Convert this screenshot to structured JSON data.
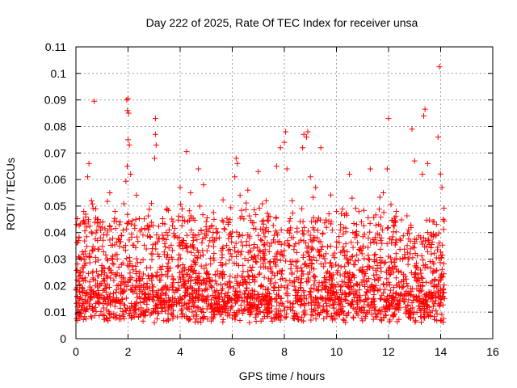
{
  "chart_data": {
    "type": "scatter",
    "title": "Day 222 of 2025, Rate Of TEC Index for receiver unsa",
    "xlabel": "GPS time / hours",
    "ylabel": "ROTI / TECUs",
    "xlim": [
      0,
      16
    ],
    "ylim": [
      0,
      0.11
    ],
    "x_ticks": [
      "0",
      "2",
      "4",
      "6",
      "8",
      "10",
      "12",
      "14",
      "16"
    ],
    "y_ticks": [
      "0",
      "0.01",
      "0.02",
      "0.03",
      "0.04",
      "0.05",
      "0.06",
      "0.07",
      "0.08",
      "0.09",
      "0.1",
      "0.11"
    ],
    "grid": true,
    "marker": "+",
    "series": [
      {
        "name": "ROTI",
        "color": "#ff0000",
        "points": [
          [
            0.1,
            0.037
          ],
          [
            0.3,
            0.048
          ],
          [
            0.45,
            0.061
          ],
          [
            0.5,
            0.066
          ],
          [
            0.6,
            0.052
          ],
          [
            0.7,
            0.0895
          ],
          [
            0.85,
            0.045
          ],
          [
            1.0,
            0.042
          ],
          [
            1.3,
            0.055
          ],
          [
            1.5,
            0.048
          ],
          [
            1.7,
            0.044
          ],
          [
            1.95,
            0.09
          ],
          [
            2.0,
            0.0905
          ],
          [
            1.98,
            0.086
          ],
          [
            2.02,
            0.085
          ],
          [
            2.0,
            0.075
          ],
          [
            2.05,
            0.073
          ],
          [
            1.97,
            0.065
          ],
          [
            2.1,
            0.062
          ],
          [
            2.3,
            0.045
          ],
          [
            3.05,
            0.083
          ],
          [
            3.05,
            0.077
          ],
          [
            3.08,
            0.073
          ],
          [
            3.02,
            0.068
          ],
          [
            2.9,
            0.051
          ],
          [
            3.5,
            0.049
          ],
          [
            4.0,
            0.057
          ],
          [
            4.25,
            0.0705
          ],
          [
            4.4,
            0.055
          ],
          [
            4.7,
            0.064
          ],
          [
            4.9,
            0.058
          ],
          [
            5.3,
            0.045
          ],
          [
            6.15,
            0.068
          ],
          [
            6.2,
            0.066
          ],
          [
            6.1,
            0.061
          ],
          [
            6.3,
            0.054
          ],
          [
            6.6,
            0.056
          ],
          [
            7.0,
            0.063
          ],
          [
            7.3,
            0.052
          ],
          [
            7.7,
            0.065
          ],
          [
            7.85,
            0.072
          ],
          [
            8.05,
            0.078
          ],
          [
            8.0,
            0.074
          ],
          [
            8.1,
            0.064
          ],
          [
            8.3,
            0.052
          ],
          [
            8.75,
            0.077
          ],
          [
            8.9,
            0.078
          ],
          [
            8.85,
            0.076
          ],
          [
            8.7,
            0.072
          ],
          [
            9.0,
            0.061
          ],
          [
            9.4,
            0.072
          ],
          [
            9.2,
            0.057
          ],
          [
            10.0,
            0.048
          ],
          [
            10.5,
            0.062
          ],
          [
            10.6,
            0.053
          ],
          [
            11.3,
            0.064
          ],
          [
            11.8,
            0.055
          ],
          [
            12.0,
            0.083
          ],
          [
            11.95,
            0.064
          ],
          [
            12.3,
            0.048
          ],
          [
            12.9,
            0.079
          ],
          [
            13.0,
            0.067
          ],
          [
            13.3,
            0.062
          ],
          [
            13.4,
            0.0865
          ],
          [
            13.35,
            0.084
          ],
          [
            13.5,
            0.066
          ],
          [
            13.9,
            0.076
          ],
          [
            13.95,
            0.1025
          ],
          [
            14.05,
            0.057
          ],
          [
            14.1,
            0.045
          ]
        ],
        "cloud_summary": "Dense band of thousands of samples from t=0 to t~14.2 h, mostly between 0.005 and 0.04 TECU, median near 0.015"
      }
    ]
  }
}
